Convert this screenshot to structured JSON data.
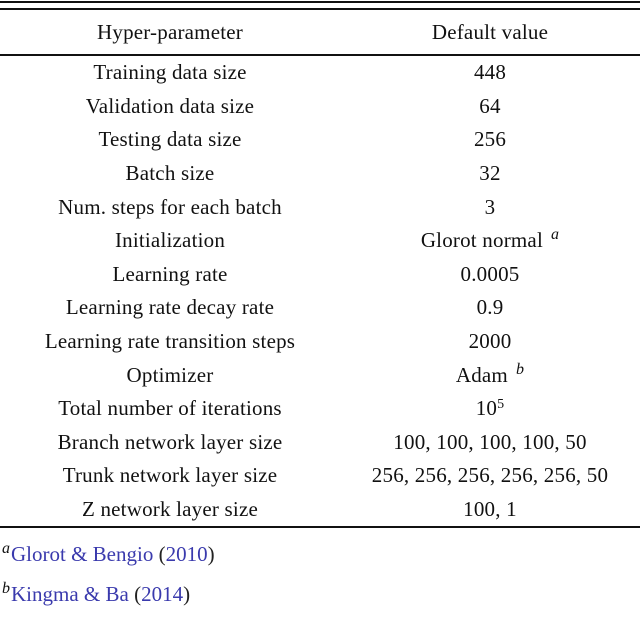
{
  "table": {
    "headers": {
      "param": "Hyper-parameter",
      "value": "Default value"
    },
    "rows": [
      {
        "param": "Training data size",
        "value": "448"
      },
      {
        "param": "Validation data size",
        "value": "64"
      },
      {
        "param": "Testing data size",
        "value": "256"
      },
      {
        "param": "Batch size",
        "value": "32"
      },
      {
        "param": "Num. steps for each batch",
        "value": "3"
      },
      {
        "param": "Initialization",
        "value": "Glorot normal",
        "sup_i": "a"
      },
      {
        "param": "Learning rate",
        "value": "0.0005"
      },
      {
        "param": "Learning rate decay rate",
        "value": "0.9"
      },
      {
        "param": "Learning rate transition steps",
        "value": "2000"
      },
      {
        "param": "Optimizer",
        "value": "Adam",
        "sup_i": "b"
      },
      {
        "param": "Total number of iterations",
        "value": "10",
        "sup_n": "5"
      },
      {
        "param": "Branch network layer size",
        "value": "100, 100, 100, 100, 50"
      },
      {
        "param": "Trunk network layer size",
        "value": "256, 256, 256, 256, 256, 50"
      },
      {
        "param": "Z network layer size",
        "value": "100, 1"
      }
    ]
  },
  "footnotes": [
    {
      "marker": "a",
      "authors": "Glorot & Bengio",
      "open": "(",
      "year": "2010",
      "close": ")"
    },
    {
      "marker": "b",
      "authors": "Kingma & Ba",
      "open": "(",
      "year": "2014",
      "close": ")"
    }
  ],
  "colors": {
    "text": "#111111",
    "link": "#3a3aad"
  }
}
